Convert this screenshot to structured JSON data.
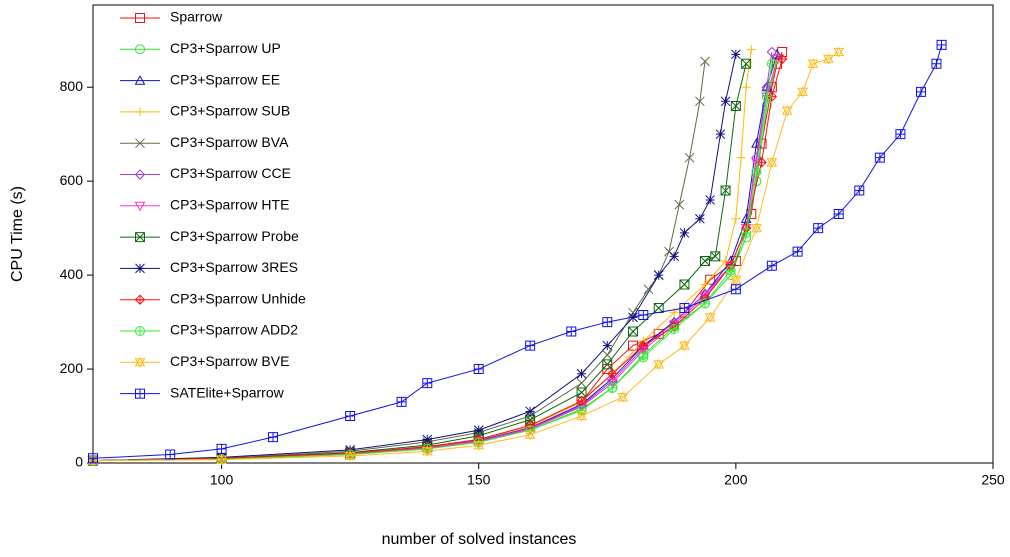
{
  "chart_data": {
    "type": "line",
    "xlabel": "number of solved instances",
    "ylabel": "CPU Time (s)",
    "xlim": [
      75,
      250
    ],
    "ylim": [
      0,
      975
    ],
    "xticks": [
      100,
      150,
      200,
      250
    ],
    "yticks": [
      0,
      200,
      400,
      600,
      800
    ],
    "legend": "upper left",
    "series": [
      {
        "name": "Sparrow",
        "color": "#ee1111",
        "marker": "square",
        "x": [
          75,
          100,
          125,
          140,
          150,
          160,
          170,
          175,
          180,
          185,
          190,
          195,
          200,
          203,
          205,
          207,
          208,
          209
        ],
        "values": [
          5,
          10,
          20,
          35,
          50,
          80,
          130,
          200,
          250,
          275,
          320,
          390,
          430,
          530,
          680,
          800,
          850,
          875
        ]
      },
      {
        "name": "CP3+Sparrow UP",
        "color": "#33dd33",
        "marker": "circle",
        "x": [
          75,
          100,
          125,
          140,
          150,
          160,
          170,
          176,
          182,
          188,
          194,
          199,
          202,
          204,
          206,
          208
        ],
        "values": [
          5,
          8,
          18,
          30,
          45,
          70,
          115,
          160,
          230,
          290,
          340,
          400,
          480,
          600,
          760,
          860
        ]
      },
      {
        "name": "CP3+Sparrow EE",
        "color": "#1111cc",
        "marker": "triangle",
        "x": [
          75,
          100,
          125,
          140,
          150,
          160,
          170,
          176,
          182,
          188,
          194,
          199,
          202,
          204,
          206,
          208
        ],
        "values": [
          5,
          9,
          20,
          32,
          48,
          75,
          125,
          180,
          250,
          300,
          360,
          430,
          520,
          680,
          800,
          870
        ]
      },
      {
        "name": "CP3+Sparrow SUB",
        "color": "#ffbb00",
        "marker": "plus",
        "x": [
          75,
          100,
          125,
          140,
          150,
          160,
          170,
          176,
          182,
          188,
          194,
          198,
          200,
          201,
          202,
          203
        ],
        "values": [
          5,
          9,
          20,
          33,
          50,
          78,
          130,
          190,
          260,
          320,
          380,
          430,
          520,
          650,
          800,
          880
        ]
      },
      {
        "name": "CP3+Sparrow BVA",
        "color": "#5a6e40",
        "marker": "cross",
        "x": [
          75,
          100,
          125,
          140,
          150,
          160,
          170,
          175,
          180,
          183,
          185,
          187,
          189,
          191,
          193,
          194
        ],
        "values": [
          5,
          10,
          25,
          45,
          65,
          100,
          170,
          230,
          320,
          370,
          400,
          450,
          550,
          650,
          770,
          855
        ]
      },
      {
        "name": "CP3+Sparrow CCE",
        "color": "#a040e0",
        "marker": "diamond",
        "x": [
          75,
          100,
          125,
          140,
          150,
          160,
          170,
          176,
          182,
          188,
          194,
          199,
          202,
          204,
          206,
          207
        ],
        "values": [
          5,
          9,
          19,
          32,
          47,
          74,
          122,
          175,
          245,
          300,
          360,
          420,
          500,
          650,
          800,
          875
        ]
      },
      {
        "name": "CP3+Sparrow HTE",
        "color": "#ff33cc",
        "marker": "triangle-down",
        "x": [
          75,
          100,
          125,
          140,
          150,
          160,
          170,
          176,
          182,
          188,
          194,
          199,
          202,
          204,
          206,
          208
        ],
        "values": [
          5,
          9,
          19,
          31,
          46,
          72,
          120,
          170,
          240,
          295,
          355,
          420,
          500,
          640,
          780,
          860
        ]
      },
      {
        "name": "CP3+Sparrow Probe",
        "color": "#116611",
        "marker": "square-x",
        "x": [
          75,
          100,
          125,
          140,
          150,
          160,
          170,
          175,
          180,
          185,
          190,
          194,
          196,
          198,
          200,
          202
        ],
        "values": [
          5,
          10,
          22,
          38,
          58,
          92,
          150,
          210,
          280,
          330,
          380,
          430,
          440,
          580,
          760,
          850
        ]
      },
      {
        "name": "CP3+Sparrow 3RES",
        "color": "#101080",
        "marker": "asterisk",
        "x": [
          75,
          100,
          125,
          140,
          150,
          160,
          170,
          175,
          180,
          185,
          188,
          190,
          193,
          195,
          197,
          198,
          200
        ],
        "values": [
          5,
          12,
          28,
          50,
          70,
          110,
          190,
          250,
          310,
          400,
          440,
          490,
          520,
          560,
          700,
          770,
          870
        ]
      },
      {
        "name": "CP3+Sparrow Unhide",
        "color": "#ff1111",
        "marker": "diamond-plus",
        "x": [
          75,
          100,
          125,
          140,
          150,
          160,
          170,
          176,
          182,
          188,
          194,
          199,
          202,
          205,
          207,
          209
        ],
        "values": [
          5,
          10,
          21,
          34,
          50,
          80,
          132,
          190,
          250,
          290,
          350,
          420,
          500,
          640,
          780,
          860
        ]
      },
      {
        "name": "CP3+Sparrow ADD2",
        "color": "#33ee33",
        "marker": "circle-plus",
        "x": [
          75,
          100,
          125,
          140,
          150,
          160,
          170,
          176,
          182,
          188,
          194,
          199,
          202,
          204,
          206,
          207
        ],
        "values": [
          5,
          8,
          18,
          30,
          44,
          70,
          112,
          160,
          225,
          285,
          340,
          410,
          490,
          620,
          780,
          850
        ]
      },
      {
        "name": "CP3+Sparrow BVE",
        "color": "#ffbb22",
        "marker": "star",
        "x": [
          75,
          100,
          125,
          140,
          150,
          160,
          170,
          178,
          185,
          190,
          195,
          200,
          204,
          207,
          210,
          213,
          215,
          218,
          220
        ],
        "values": [
          5,
          7,
          15,
          25,
          38,
          60,
          100,
          140,
          210,
          250,
          310,
          390,
          500,
          640,
          750,
          790,
          850,
          860,
          875
        ]
      },
      {
        "name": "SATElite+Sparrow",
        "color": "#1111ee",
        "marker": "square-plus",
        "x": [
          75,
          90,
          100,
          110,
          125,
          135,
          140,
          150,
          160,
          168,
          175,
          182,
          190,
          200,
          207,
          212,
          216,
          220,
          224,
          228,
          232,
          236,
          239,
          240
        ],
        "values": [
          10,
          18,
          30,
          55,
          100,
          130,
          170,
          200,
          250,
          280,
          300,
          315,
          330,
          370,
          420,
          450,
          500,
          530,
          580,
          650,
          700,
          790,
          850,
          890
        ]
      }
    ]
  }
}
